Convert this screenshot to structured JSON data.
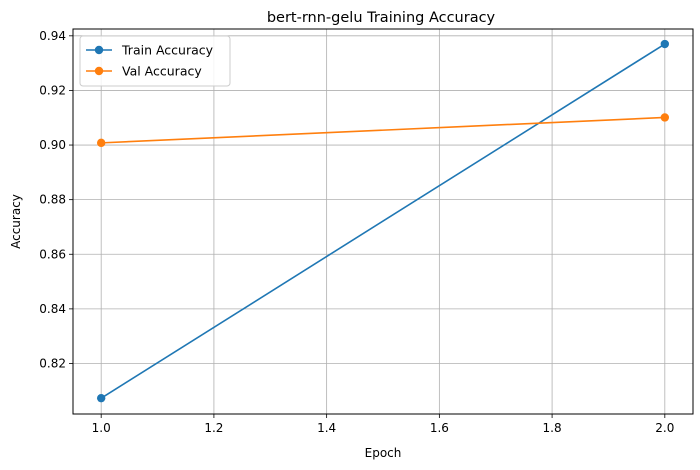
{
  "chart_data": {
    "type": "line",
    "title": "bert-rnn-gelu Training Accuracy",
    "xlabel": "Epoch",
    "ylabel": "Accuracy",
    "xlim": [
      0.95,
      2.05
    ],
    "ylim": [
      0.8015,
      0.9425
    ],
    "xticks": [
      1.0,
      1.2,
      1.4,
      1.6,
      1.8,
      2.0
    ],
    "xtick_labels": [
      "1.0",
      "1.2",
      "1.4",
      "1.6",
      "1.8",
      "2.0"
    ],
    "yticks": [
      0.82,
      0.84,
      0.86,
      0.88,
      0.9,
      0.92,
      0.94
    ],
    "ytick_labels": [
      "0.82",
      "0.84",
      "0.86",
      "0.88",
      "0.90",
      "0.92",
      "0.94"
    ],
    "grid": true,
    "legend_position": "top-left",
    "x": [
      1.0,
      2.0
    ],
    "series": [
      {
        "name": "Train Accuracy",
        "values": [
          0.8073,
          0.937
        ],
        "color": "#1f77b4",
        "marker": "circle"
      },
      {
        "name": "Val Accuracy",
        "values": [
          0.9008,
          0.9101
        ],
        "color": "#ff7f0e",
        "marker": "circle"
      }
    ]
  }
}
